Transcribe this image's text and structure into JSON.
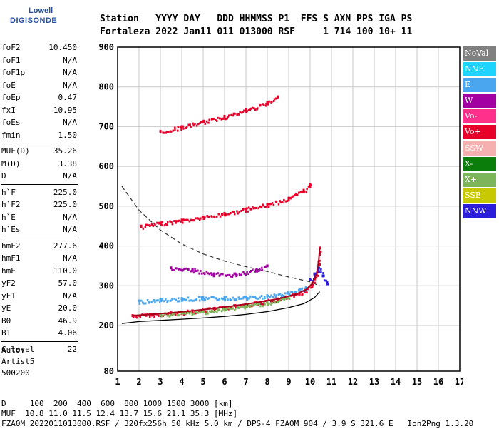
{
  "logo": {
    "line1": "Lowell",
    "line2": "DIGISONDE"
  },
  "header": {
    "line1": "Station   YYYY DAY   DDD HHMMSS P1  FFS S AXN PPS IGA PS",
    "line2": "Fortaleza 2022 Jan11 011 013000 RSF     1 714 100 10+ 11"
  },
  "params": [
    {
      "label": "foF2",
      "value": "10.450"
    },
    {
      "label": "foF1",
      "value": "N/A"
    },
    {
      "label": "foF1p",
      "value": "N/A"
    },
    {
      "label": "foE",
      "value": "N/A"
    },
    {
      "label": "foEp",
      "value": "0.47"
    },
    {
      "label": "fxI",
      "value": "10.95"
    },
    {
      "label": "foEs",
      "value": "N/A"
    },
    {
      "label": "fmin",
      "value": "1.50"
    },
    {
      "label": "MUF(D)",
      "value": "35.26"
    },
    {
      "label": "M(D)",
      "value": "3.38"
    },
    {
      "label": "D",
      "value": "N/A"
    },
    {
      "label": "h`F",
      "value": "225.0"
    },
    {
      "label": "h`F2",
      "value": "225.0"
    },
    {
      "label": "h`E",
      "value": "N/A"
    },
    {
      "label": "h`Es",
      "value": "N/A"
    },
    {
      "label": "hmF2",
      "value": "277.6"
    },
    {
      "label": "hmF1",
      "value": "N/A"
    },
    {
      "label": "hmE",
      "value": "110.0"
    },
    {
      "label": "yF2",
      "value": "57.0"
    },
    {
      "label": "yF1",
      "value": "N/A"
    },
    {
      "label": "yE",
      "value": "20.0"
    },
    {
      "label": "B0",
      "value": "46.9"
    },
    {
      "label": "B1",
      "value": "4.06"
    },
    {
      "label": "C-level",
      "value": "22"
    }
  ],
  "auto": {
    "line1": "Auto:",
    "line2": "Artist5",
    "line3": "500200"
  },
  "footer": {
    "line1": "D     100  200  400  600  800 1000 1500 3000 [km]",
    "line2": "MUF  10.8 11.0 11.5 12.4 13.7 15.6 21.1 35.3 [MHz]",
    "line3": "FZA0M_2022011013000.RSF / 320fx256h 50 kHz 5.0 km / DPS-4 FZA0M 904 / 3.9 S 321.6 E   Ion2Png 1.3.20"
  },
  "legend": [
    {
      "label": "NoVal",
      "color": "#808080"
    },
    {
      "label": "NNE",
      "color": "#1fd3ff"
    },
    {
      "label": "E",
      "color": "#4aa6ee"
    },
    {
      "label": "W",
      "color": "#a300a3"
    },
    {
      "label": "Vo-",
      "color": "#ff2f8c"
    },
    {
      "label": "Vo+",
      "color": "#e8002a"
    },
    {
      "label": "SSW",
      "color": "#f5b0b0"
    },
    {
      "label": "X-",
      "color": "#0a7d0a"
    },
    {
      "label": "X+",
      "color": "#7cb55a"
    },
    {
      "label": "SSE",
      "color": "#c8c800"
    },
    {
      "label": "NNW",
      "color": "#2a1ed8"
    }
  ],
  "chart_data": {
    "type": "scatter",
    "title": "",
    "xlabel": "",
    "ylabel": "",
    "xlim": [
      1,
      17
    ],
    "ylim": [
      80,
      900
    ],
    "x_ticks": [
      1,
      2,
      3,
      4,
      5,
      6,
      7,
      8,
      9,
      10,
      11,
      12,
      13,
      14,
      15,
      16,
      17
    ],
    "y_ticks": [
      80,
      200,
      300,
      400,
      500,
      600,
      700,
      800,
      900
    ],
    "grid": true,
    "series": [
      {
        "name": "Vo+",
        "color": "#e8002a",
        "points": [
          [
            1.7,
            225
          ],
          [
            2.5,
            228
          ],
          [
            3.5,
            232
          ],
          [
            4.5,
            237
          ],
          [
            5.5,
            243
          ],
          [
            6.5,
            250
          ],
          [
            7.5,
            258
          ],
          [
            8.5,
            267
          ],
          [
            9.3,
            278
          ],
          [
            9.8,
            290
          ],
          [
            10.1,
            305
          ],
          [
            10.3,
            330
          ],
          [
            10.4,
            360
          ],
          [
            10.45,
            395
          ]
        ]
      },
      {
        "name": "Vo+",
        "color": "#e8002a",
        "points": [
          [
            2.1,
            450
          ],
          [
            3,
            458
          ],
          [
            4,
            465
          ],
          [
            5,
            473
          ],
          [
            6,
            482
          ],
          [
            7,
            493
          ],
          [
            8,
            505
          ],
          [
            9,
            520
          ],
          [
            9.7,
            540
          ],
          [
            10,
            555
          ]
        ]
      },
      {
        "name": "Vo+",
        "color": "#e8002a",
        "points": [
          [
            3,
            688
          ],
          [
            4,
            700
          ],
          [
            5,
            713
          ],
          [
            6,
            726
          ],
          [
            7,
            742
          ],
          [
            8,
            760
          ],
          [
            8.5,
            775
          ]
        ]
      },
      {
        "name": "E",
        "color": "#4aa6ee",
        "points": [
          [
            2,
            262
          ],
          [
            3,
            265
          ],
          [
            4,
            268
          ],
          [
            5,
            270
          ],
          [
            6,
            270
          ],
          [
            7,
            271
          ],
          [
            8,
            275
          ],
          [
            9,
            282
          ],
          [
            9.8,
            295
          ]
        ]
      },
      {
        "name": "W",
        "color": "#a300a3",
        "points": [
          [
            3.5,
            345
          ],
          [
            4.5,
            340
          ],
          [
            5.5,
            330
          ],
          [
            6.5,
            330
          ],
          [
            7.5,
            340
          ],
          [
            8,
            350
          ]
        ]
      },
      {
        "name": "NNW",
        "color": "#2a1ed8",
        "points": [
          [
            10,
            315
          ],
          [
            10.2,
            330
          ],
          [
            10.4,
            345
          ],
          [
            10.6,
            325
          ],
          [
            10.8,
            305
          ]
        ]
      },
      {
        "name": "X+",
        "color": "#7cb55a",
        "points": [
          [
            3,
            228
          ],
          [
            4,
            232
          ],
          [
            5,
            236
          ],
          [
            6,
            242
          ],
          [
            7,
            250
          ],
          [
            8,
            258
          ],
          [
            9,
            270
          ]
        ]
      }
    ],
    "profile_curve": [
      [
        1.2,
        205
      ],
      [
        2,
        210
      ],
      [
        3,
        213
      ],
      [
        4,
        216
      ],
      [
        5,
        219
      ],
      [
        6,
        223
      ],
      [
        7,
        228
      ],
      [
        8,
        235
      ],
      [
        9,
        245
      ],
      [
        9.7,
        255
      ],
      [
        10.2,
        270
      ],
      [
        10.45,
        285
      ]
    ],
    "dashed_curve": [
      [
        1.2,
        550
      ],
      [
        2,
        490
      ],
      [
        3,
        440
      ],
      [
        4,
        405
      ],
      [
        5,
        380
      ],
      [
        6,
        362
      ],
      [
        7,
        348
      ],
      [
        8,
        336
      ],
      [
        9,
        322
      ],
      [
        10,
        310
      ],
      [
        10.45,
        300
      ]
    ]
  }
}
